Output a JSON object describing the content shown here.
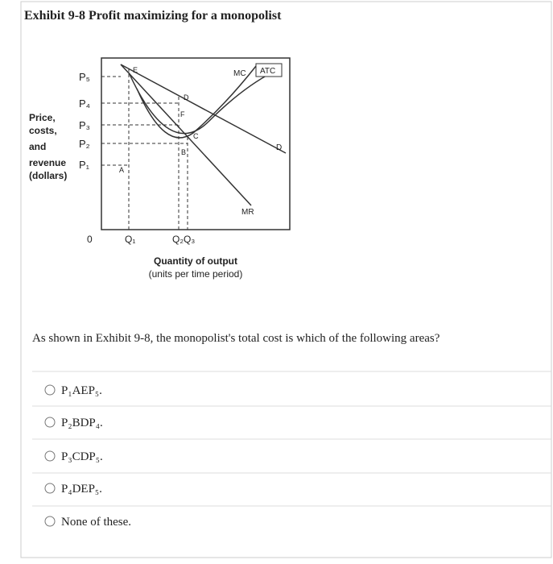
{
  "header": {
    "title": "Exhibit 9-8 Profit maximizing for a monopolist"
  },
  "diagram": {
    "y_axis_label": [
      "Price,",
      "costs,",
      "and",
      "revenue",
      "(dollars)"
    ],
    "price_labels": [
      "P₅",
      "P₄",
      "P₃",
      "P₂",
      "P₁"
    ],
    "origin": "0",
    "quantity_labels": [
      "Q₁",
      "Q₂Q₃"
    ],
    "x_axis_label": [
      "Quantity of output",
      "(units per time period)"
    ],
    "curve_labels": {
      "mc": "MC",
      "atc": "ATC",
      "mr": "MR",
      "d": "D"
    },
    "point_labels": [
      "E",
      "D",
      "F",
      "C",
      "B",
      "A"
    ]
  },
  "question": "As shown in Exhibit 9-8, the monopolist's total cost is which of the following areas?",
  "options": [
    "P₁AEP₅.",
    "P₂BDP₄.",
    "P₃CDP₅.",
    "P₄DEP₅.",
    "None of these."
  ]
}
